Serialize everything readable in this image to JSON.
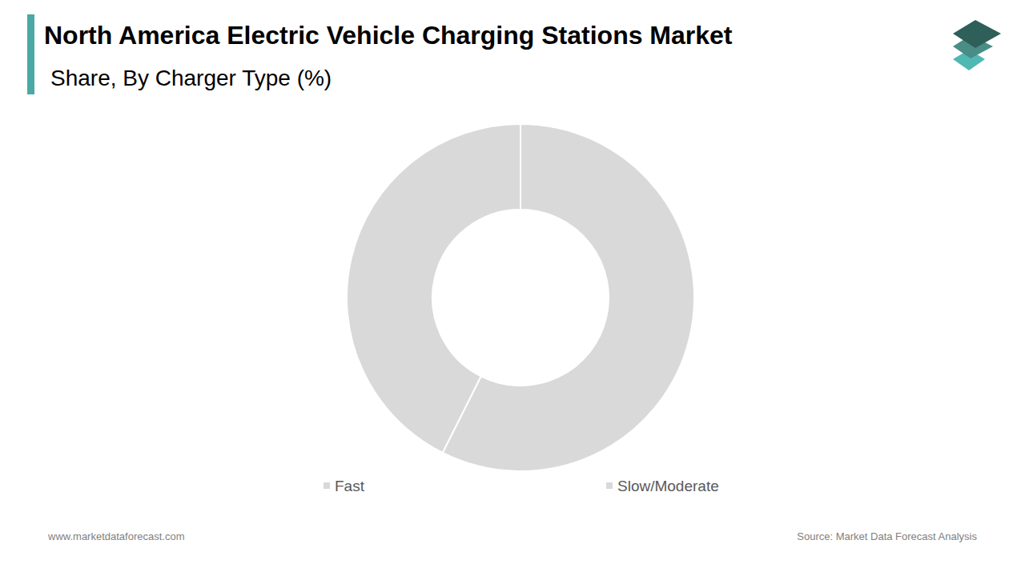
{
  "chart_data": {
    "type": "pie",
    "title": "North America Electric Vehicle Charging Stations Market",
    "subtitle": "Share, By Charger Type (%)",
    "categories": [
      "Fast",
      "Slow/Moderate"
    ],
    "values": [
      57.4,
      42.6
    ],
    "colors": [
      "#d9d9d9",
      "#d9d9d9"
    ],
    "legend": "bottom",
    "website": "www.marketdataforecast.com",
    "source": "Source: Market Data Forecast Analysis"
  }
}
